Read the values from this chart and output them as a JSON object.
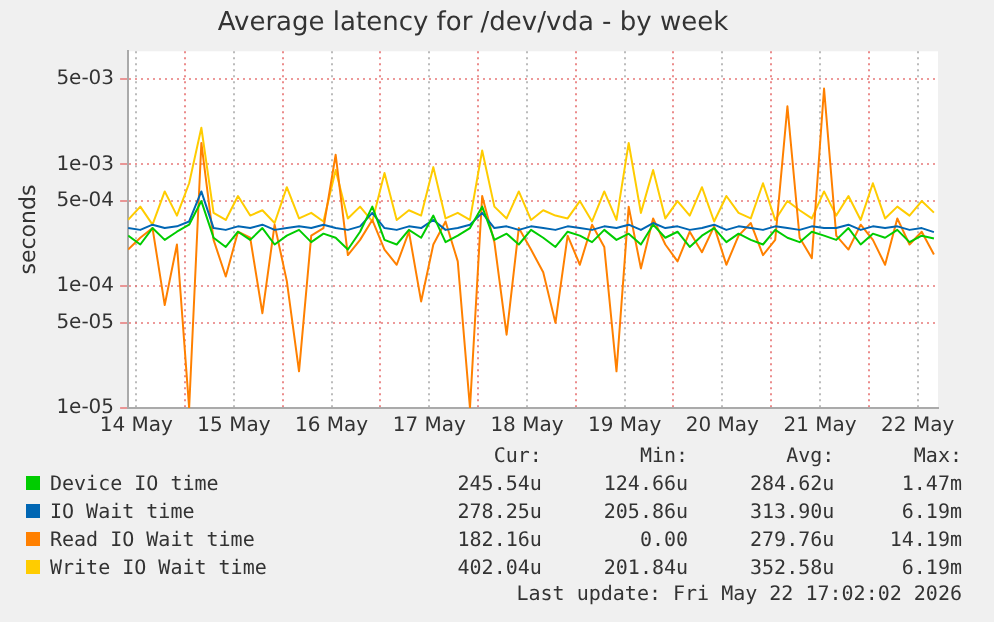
{
  "chart_data": {
    "type": "line",
    "title": "Average latency for /dev/vda - by week",
    "ylabel": "seconds",
    "log": "y",
    "grid": true,
    "legend": "bottom",
    "marker": "none",
    "line_style": "solid",
    "x": [
      "2026-05-14T10:00",
      "2026-05-14T13:00",
      "2026-05-14T16:00",
      "2026-05-14T19:00",
      "2026-05-14T22:00",
      "2026-05-15T01:00",
      "2026-05-15T04:00",
      "2026-05-15T07:00",
      "2026-05-15T10:00",
      "2026-05-15T13:00",
      "2026-05-15T16:00",
      "2026-05-15T19:00",
      "2026-05-15T22:00",
      "2026-05-16T01:00",
      "2026-05-16T04:00",
      "2026-05-16T07:00",
      "2026-05-16T10:00",
      "2026-05-16T13:00",
      "2026-05-16T16:00",
      "2026-05-16T19:00",
      "2026-05-16T22:00",
      "2026-05-17T01:00",
      "2026-05-17T04:00",
      "2026-05-17T07:00",
      "2026-05-17T10:00",
      "2026-05-17T13:00",
      "2026-05-17T16:00",
      "2026-05-17T19:00",
      "2026-05-17T22:00",
      "2026-05-18T01:00",
      "2026-05-18T04:00",
      "2026-05-18T07:00",
      "2026-05-18T10:00",
      "2026-05-18T13:00",
      "2026-05-18T16:00",
      "2026-05-18T19:00",
      "2026-05-18T22:00",
      "2026-05-19T01:00",
      "2026-05-19T04:00",
      "2026-05-19T07:00",
      "2026-05-19T10:00",
      "2026-05-19T13:00",
      "2026-05-19T16:00",
      "2026-05-19T19:00",
      "2026-05-19T22:00",
      "2026-05-20T01:00",
      "2026-05-20T04:00",
      "2026-05-20T07:00",
      "2026-05-20T10:00",
      "2026-05-20T13:00",
      "2026-05-20T16:00",
      "2026-05-20T19:00",
      "2026-05-20T22:00",
      "2026-05-21T01:00",
      "2026-05-21T04:00",
      "2026-05-21T07:00",
      "2026-05-21T10:00",
      "2026-05-21T13:00",
      "2026-05-21T16:00",
      "2026-05-21T19:00",
      "2026-05-21T22:00",
      "2026-05-22T01:00",
      "2026-05-22T04:00",
      "2026-05-22T07:00",
      "2026-05-22T10:00",
      "2026-05-22T13:00",
      "2026-05-22T16:00"
    ],
    "xlim": [
      "2026-05-14T10:00",
      "2026-05-22T17:00"
    ],
    "xticks": [
      {
        "value": "2026-05-14T12:00",
        "label": "14 May"
      },
      {
        "value": "2026-05-15T00:00",
        "label": null
      },
      {
        "value": "2026-05-15T12:00",
        "label": "15 May"
      },
      {
        "value": "2026-05-16T00:00",
        "label": null
      },
      {
        "value": "2026-05-16T12:00",
        "label": "16 May"
      },
      {
        "value": "2026-05-17T00:00",
        "label": null
      },
      {
        "value": "2026-05-17T12:00",
        "label": "17 May"
      },
      {
        "value": "2026-05-18T00:00",
        "label": null
      },
      {
        "value": "2026-05-18T12:00",
        "label": "18 May"
      },
      {
        "value": "2026-05-19T00:00",
        "label": null
      },
      {
        "value": "2026-05-19T12:00",
        "label": "19 May"
      },
      {
        "value": "2026-05-20T00:00",
        "label": null
      },
      {
        "value": "2026-05-20T12:00",
        "label": "20 May"
      },
      {
        "value": "2026-05-21T00:00",
        "label": null
      },
      {
        "value": "2026-05-21T12:00",
        "label": "21 May"
      },
      {
        "value": "2026-05-22T00:00",
        "label": null
      },
      {
        "value": "2026-05-22T12:00",
        "label": "22 May"
      }
    ],
    "ylim": [
      1e-05,
      0.0085
    ],
    "yticks": [
      {
        "value": 1e-05,
        "label": "1e-05"
      },
      {
        "value": 5e-05,
        "label": "5e-05"
      },
      {
        "value": 0.0001,
        "label": "1e-04"
      },
      {
        "value": 0.0005,
        "label": "5e-04"
      },
      {
        "value": 0.001,
        "label": "1e-03"
      },
      {
        "value": 0.005,
        "label": "5e-03"
      }
    ],
    "series": [
      {
        "name": "Device IO time",
        "color": "#00cc00",
        "values": [
          0.00026,
          0.00022,
          0.0003,
          0.00024,
          0.00028,
          0.00032,
          0.0005,
          0.00025,
          0.00021,
          0.00028,
          0.00024,
          0.0003,
          0.00022,
          0.00026,
          0.00029,
          0.00023,
          0.00027,
          0.00025,
          0.0002,
          0.00028,
          0.00045,
          0.00024,
          0.00022,
          0.00029,
          0.00025,
          0.00038,
          0.00023,
          0.00026,
          0.0003,
          0.00045,
          0.00024,
          0.00027,
          0.00022,
          0.00029,
          0.00025,
          0.00021,
          0.00028,
          0.00026,
          0.00023,
          0.00029,
          0.00024,
          0.00027,
          0.00022,
          0.00032,
          0.00025,
          0.00028,
          0.00021,
          0.00026,
          0.0003,
          0.00023,
          0.00027,
          0.00024,
          0.00022,
          0.00029,
          0.00025,
          0.00023,
          0.00028,
          0.00026,
          0.00024,
          0.0003,
          0.00022,
          0.00027,
          0.00025,
          0.00029,
          0.00023,
          0.00026,
          0.000246
        ]
      },
      {
        "name": "IO Wait time",
        "color": "#0066b3",
        "values": [
          0.0003,
          0.00029,
          0.00032,
          0.0003,
          0.00031,
          0.00034,
          0.0006,
          0.0003,
          0.00029,
          0.00031,
          0.0003,
          0.00032,
          0.00029,
          0.0003,
          0.00031,
          0.0003,
          0.00032,
          0.0003,
          0.00029,
          0.00031,
          0.0004,
          0.0003,
          0.00029,
          0.00031,
          0.0003,
          0.00035,
          0.00029,
          0.0003,
          0.00032,
          0.0004,
          0.0003,
          0.00031,
          0.00029,
          0.00031,
          0.0003,
          0.00029,
          0.00031,
          0.0003,
          0.00029,
          0.00031,
          0.0003,
          0.00032,
          0.00029,
          0.00033,
          0.0003,
          0.00031,
          0.00029,
          0.0003,
          0.00032,
          0.00029,
          0.00031,
          0.0003,
          0.00029,
          0.00031,
          0.0003,
          0.00029,
          0.00031,
          0.0003,
          0.0003,
          0.00032,
          0.00029,
          0.00031,
          0.0003,
          0.00031,
          0.00029,
          0.0003,
          0.000278
        ]
      },
      {
        "name": "Read IO Wait time",
        "color": "#ff8000",
        "values": [
          0.0002,
          0.00025,
          0.0003,
          7e-05,
          0.00022,
          1e-05,
          0.0015,
          0.00024,
          0.00012,
          0.00028,
          0.00025,
          6e-05,
          0.00032,
          0.00011,
          2e-05,
          0.00026,
          0.0003,
          0.0012,
          0.00018,
          0.00024,
          0.00035,
          0.0002,
          0.00015,
          0.00028,
          7.5e-05,
          0.00022,
          0.00034,
          0.00016,
          1e-05,
          0.00055,
          0.00023,
          4e-05,
          0.0003,
          0.0002,
          0.00013,
          5e-05,
          0.00026,
          0.00015,
          0.00032,
          0.00021,
          2e-05,
          0.00045,
          0.00014,
          0.00036,
          0.00022,
          0.00016,
          0.00028,
          0.00019,
          0.00031,
          0.00015,
          0.00026,
          0.00033,
          0.00018,
          0.00024,
          0.003,
          0.00025,
          0.00017,
          0.0042,
          0.00026,
          0.0002,
          0.00032,
          0.00024,
          0.00015,
          0.00036,
          0.00022,
          0.00028,
          0.000182
        ]
      },
      {
        "name": "Write IO Wait time",
        "color": "#ffcc00",
        "values": [
          0.00035,
          0.00045,
          0.00032,
          0.0006,
          0.00038,
          0.0007,
          0.002,
          0.0004,
          0.00035,
          0.00055,
          0.00038,
          0.00042,
          0.00033,
          0.00065,
          0.00036,
          0.0004,
          0.00034,
          0.0009,
          0.00036,
          0.00045,
          0.00034,
          0.00085,
          0.00035,
          0.00042,
          0.00038,
          0.00095,
          0.00036,
          0.0004,
          0.00035,
          0.0013,
          0.00045,
          0.00036,
          0.0006,
          0.00035,
          0.00042,
          0.00038,
          0.00036,
          0.0005,
          0.00034,
          0.0006,
          0.00035,
          0.0015,
          0.0004,
          0.0009,
          0.00036,
          0.0005,
          0.00038,
          0.00065,
          0.00034,
          0.00055,
          0.0004,
          0.00036,
          0.0007,
          0.00035,
          0.0005,
          0.00042,
          0.00036,
          0.0006,
          0.00038,
          0.00055,
          0.00035,
          0.0007,
          0.00036,
          0.00045,
          0.00038,
          0.0005,
          0.000402
        ]
      }
    ],
    "annotations": [
      "Cur:",
      "Min:",
      "Avg:",
      "Max:",
      "245.54u",
      "124.66u",
      "284.62u",
      "1.47m",
      "278.25u",
      "205.86u",
      "313.90u",
      "6.19m",
      "182.16u",
      "0.00",
      "279.76u",
      "14.19m",
      "402.04u",
      "201.84u",
      "352.58u",
      "6.19m",
      "Last update: Fri May 22 17:02:02 2026"
    ]
  }
}
